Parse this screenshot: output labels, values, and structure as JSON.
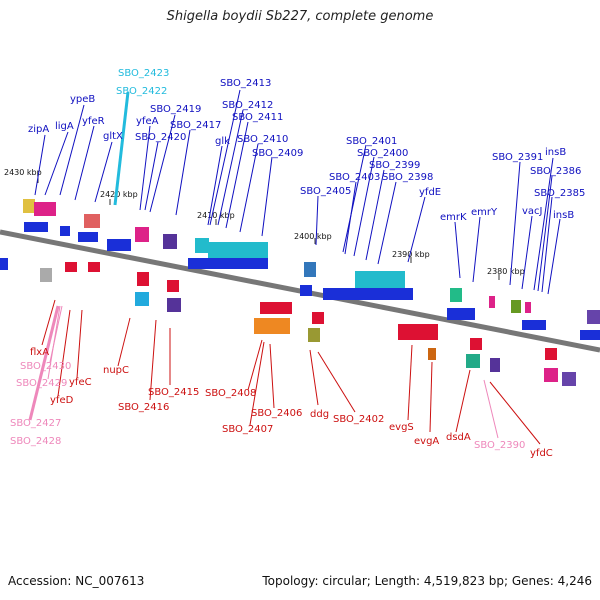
{
  "title": "Shigella boydii Sb227, complete genome",
  "footer": {
    "accession": "Accession: NC_007613",
    "summary": "Topology: circular; Length: 4,519,823 bp; Genes: 4,246"
  },
  "colors": {
    "forward_label": "#1010c0",
    "reverse_label": "#cc1010",
    "highlight_forward": "#22bbdd",
    "highlight_reverse": "#ee88bb",
    "backbone": "#808080"
  },
  "ticks": [
    "2430 kbp",
    "2420 kbp",
    "2410 kbp",
    "2400 kbp",
    "2390 kbp",
    "2380 kbp"
  ],
  "labels_top": [
    "SBO_2423",
    "SBO_2422",
    "ypeB",
    "zipA",
    "ligA",
    "yfeR",
    "gltX",
    "yfeA",
    "SBO_2419",
    "SBO_2420",
    "SBO_2417",
    "SBO_2413",
    "SBO_2412",
    "SBO_2411",
    "glk",
    "SBO_2410",
    "SBO_2409",
    "SBO_2401",
    "SBO_2400",
    "SBO_2399",
    "SBO_2403",
    "SBO_2398",
    "SBO_2405",
    "yfdE",
    "emrK",
    "emrY",
    "SBO_2391",
    "insB",
    "SBO_2386",
    "SBO_2385",
    "vacJ",
    "insB"
  ],
  "labels_bottom": [
    "flxA",
    "SBO_2430",
    "SBO_2429",
    "yfeD",
    "SBO_2427",
    "SBO_2428",
    "yfeC",
    "nupC",
    "SBO_2415",
    "SBO_2416",
    "SBO_2408",
    "SBO_2407",
    "SBO_2406",
    "ddg",
    "SBO_2402",
    "evgS",
    "evgA",
    "dsdA",
    "SBO_2390",
    "yfdC"
  ]
}
